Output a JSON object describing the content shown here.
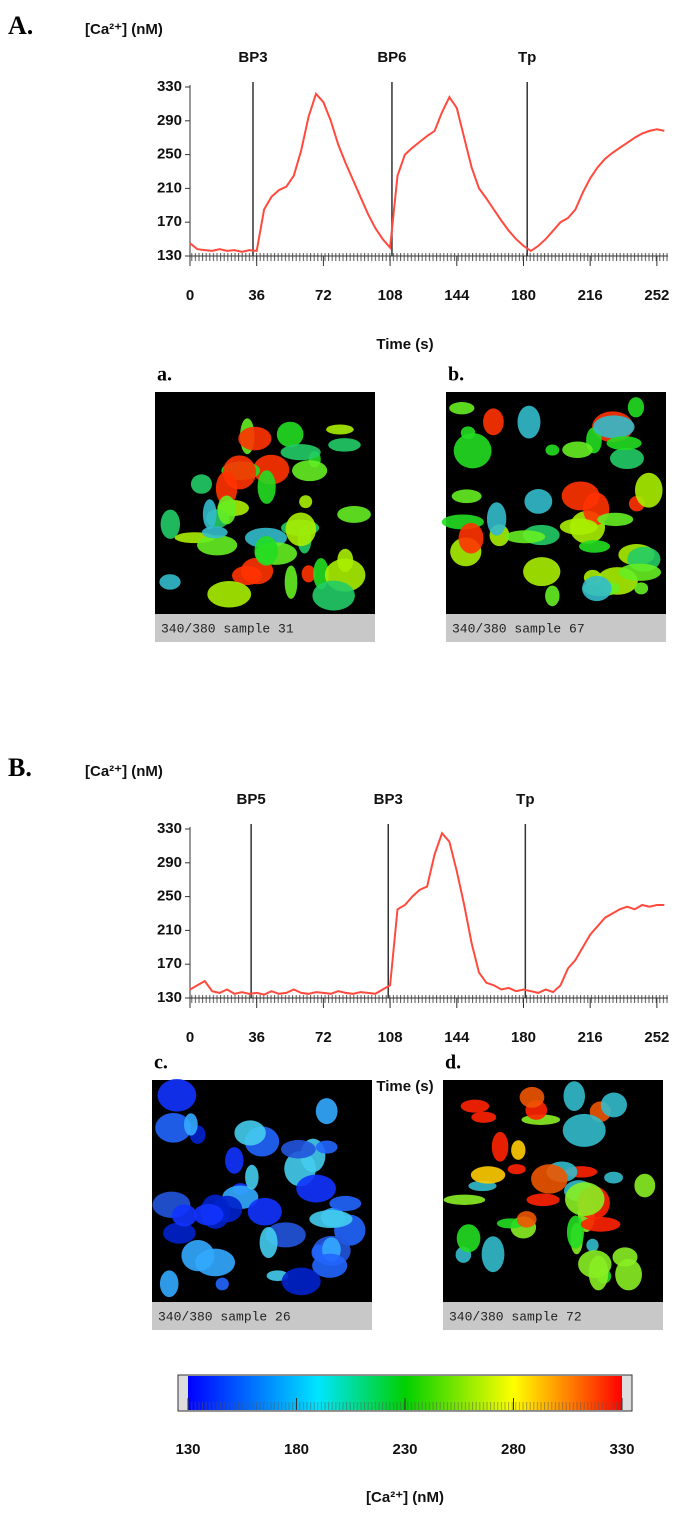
{
  "chart_data": [
    {
      "type": "line",
      "panel": "A.",
      "ylabel": "[Ca²⁺] (nM)",
      "xlabel": "Time (s)",
      "x": [
        0,
        4,
        8,
        12,
        16,
        20,
        24,
        28,
        32,
        36,
        40,
        44,
        48,
        52,
        56,
        60,
        64,
        68,
        72,
        76,
        80,
        84,
        88,
        92,
        96,
        100,
        104,
        108,
        112,
        116,
        120,
        124,
        128,
        132,
        136,
        140,
        144,
        148,
        152,
        156,
        160,
        164,
        168,
        172,
        176,
        180,
        184,
        188,
        192,
        196,
        200,
        204,
        208,
        212,
        216,
        220,
        224,
        228,
        232,
        236,
        240,
        244,
        248,
        252,
        256
      ],
      "series": [
        {
          "color": "#ff4a3d",
          "values": [
            145,
            138,
            137,
            136,
            138,
            136,
            137,
            135,
            137,
            136,
            185,
            200,
            208,
            212,
            225,
            255,
            295,
            322,
            312,
            290,
            262,
            240,
            220,
            200,
            180,
            163,
            150,
            140,
            225,
            250,
            258,
            265,
            272,
            278,
            300,
            318,
            305,
            270,
            235,
            210,
            198,
            185,
            172,
            160,
            150,
            142,
            136,
            142,
            150,
            160,
            170,
            175,
            185,
            205,
            222,
            235,
            245,
            252,
            258,
            264,
            270,
            275,
            278,
            280,
            278
          ]
        }
      ],
      "annotations": [
        {
          "text": "BP3",
          "x": 34
        },
        {
          "text": "BP6",
          "x": 109
        },
        {
          "text": "Tp",
          "x": 182
        }
      ],
      "xlim": [
        0,
        258
      ],
      "xticks": [
        0,
        36,
        72,
        108,
        144,
        180,
        216,
        252
      ],
      "ylim": [
        130,
        330
      ],
      "yticks": [
        130,
        170,
        210,
        250,
        290,
        330
      ]
    },
    {
      "type": "line",
      "panel": "B.",
      "ylabel": "[Ca²⁺] (nM)",
      "xlabel": "Time (s)",
      "x": [
        0,
        4,
        8,
        12,
        16,
        20,
        24,
        28,
        32,
        36,
        40,
        44,
        48,
        52,
        56,
        60,
        64,
        68,
        72,
        76,
        80,
        84,
        88,
        92,
        96,
        100,
        104,
        108,
        112,
        116,
        120,
        124,
        128,
        132,
        136,
        140,
        144,
        148,
        152,
        156,
        160,
        164,
        168,
        172,
        176,
        180,
        184,
        188,
        192,
        196,
        200,
        204,
        208,
        212,
        216,
        220,
        224,
        228,
        232,
        236,
        240,
        244,
        248,
        252,
        256
      ],
      "series": [
        {
          "color": "#ff4a3d",
          "values": [
            140,
            145,
            150,
            138,
            136,
            140,
            135,
            137,
            135,
            136,
            134,
            138,
            135,
            136,
            140,
            136,
            135,
            137,
            136,
            135,
            138,
            136,
            135,
            137,
            136,
            135,
            140,
            145,
            235,
            240,
            250,
            258,
            262,
            300,
            325,
            315,
            280,
            240,
            195,
            160,
            148,
            145,
            140,
            142,
            138,
            140,
            138,
            136,
            140,
            137,
            145,
            165,
            175,
            190,
            205,
            215,
            225,
            230,
            235,
            238,
            235,
            240,
            238,
            240,
            240
          ]
        }
      ],
      "annotations": [
        {
          "text": "BP5",
          "x": 33
        },
        {
          "text": "BP3",
          "x": 107
        },
        {
          "text": "Tp",
          "x": 181
        }
      ],
      "xlim": [
        0,
        258
      ],
      "xticks": [
        0,
        36,
        72,
        108,
        144,
        180,
        216,
        252
      ],
      "ylim": [
        130,
        330
      ],
      "yticks": [
        130,
        170,
        210,
        250,
        290,
        330
      ]
    }
  ],
  "images": [
    {
      "label": "a.",
      "caption": "340/380 sample 31"
    },
    {
      "label": "b.",
      "caption": "340/380 sample 67"
    },
    {
      "label": "c.",
      "caption": "340/380 sample 26"
    },
    {
      "label": "d.",
      "caption": "340/380 sample 72"
    }
  ],
  "colorbar": {
    "label": "[Ca²⁺] (nM)",
    "lim": [
      130,
      330
    ],
    "ticks": [
      130,
      180,
      230,
      280,
      330
    ]
  }
}
